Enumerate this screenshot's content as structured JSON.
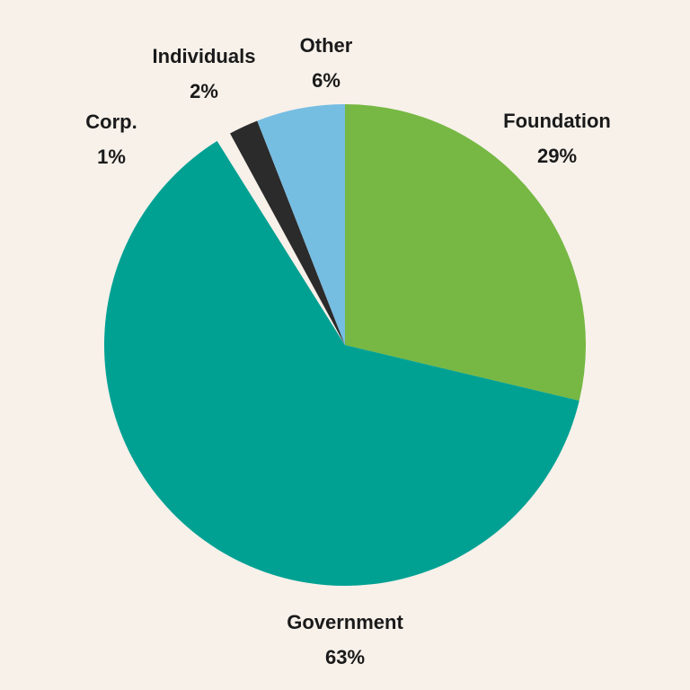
{
  "chart_data": {
    "type": "pie",
    "title": "",
    "slices": [
      {
        "label": "Foundation",
        "value": 29,
        "display": "29%",
        "color": "#76B843"
      },
      {
        "label": "Government",
        "value": 63,
        "display": "63%",
        "color": "#00A193"
      },
      {
        "label": "Corp.",
        "value": 1,
        "display": "1%",
        "color": "#F7F1EA"
      },
      {
        "label": "Individuals",
        "value": 2,
        "display": "2%",
        "color": "#2B2B2B"
      },
      {
        "label": "Other",
        "value": 6,
        "display": "6%",
        "color": "#76BDE2"
      }
    ],
    "start_angle": "12 o'clock",
    "direction": "clockwise"
  },
  "colors": {
    "background": "#F7F1EA",
    "label_text": "#1a1a1a"
  }
}
